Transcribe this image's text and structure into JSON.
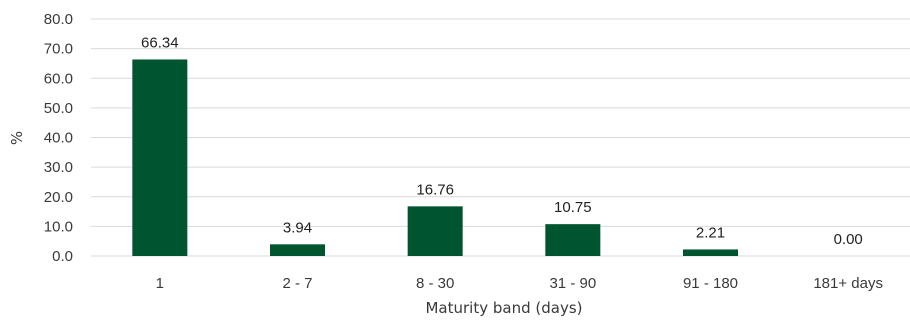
{
  "chart_data": {
    "type": "bar",
    "categories": [
      "1",
      "2 - 7",
      "8 - 30",
      "31 - 90",
      "91 - 180",
      "181+ days"
    ],
    "values": [
      66.34,
      3.94,
      16.76,
      10.75,
      2.21,
      0.0
    ],
    "data_labels": [
      "66.34",
      "3.94",
      "16.76",
      "10.75",
      "2.21",
      "0.00"
    ],
    "title": "",
    "xlabel": "Maturity band (days)",
    "ylabel": "%",
    "ylim": [
      0,
      80
    ],
    "yticks": [
      "0.0",
      "10.0",
      "20.0",
      "30.0",
      "40.0",
      "50.0",
      "60.0",
      "70.0",
      "80.0"
    ],
    "grid": true,
    "legend": "none",
    "colors": {
      "bar": "#00542f",
      "grid": "#d9d9d9"
    }
  }
}
